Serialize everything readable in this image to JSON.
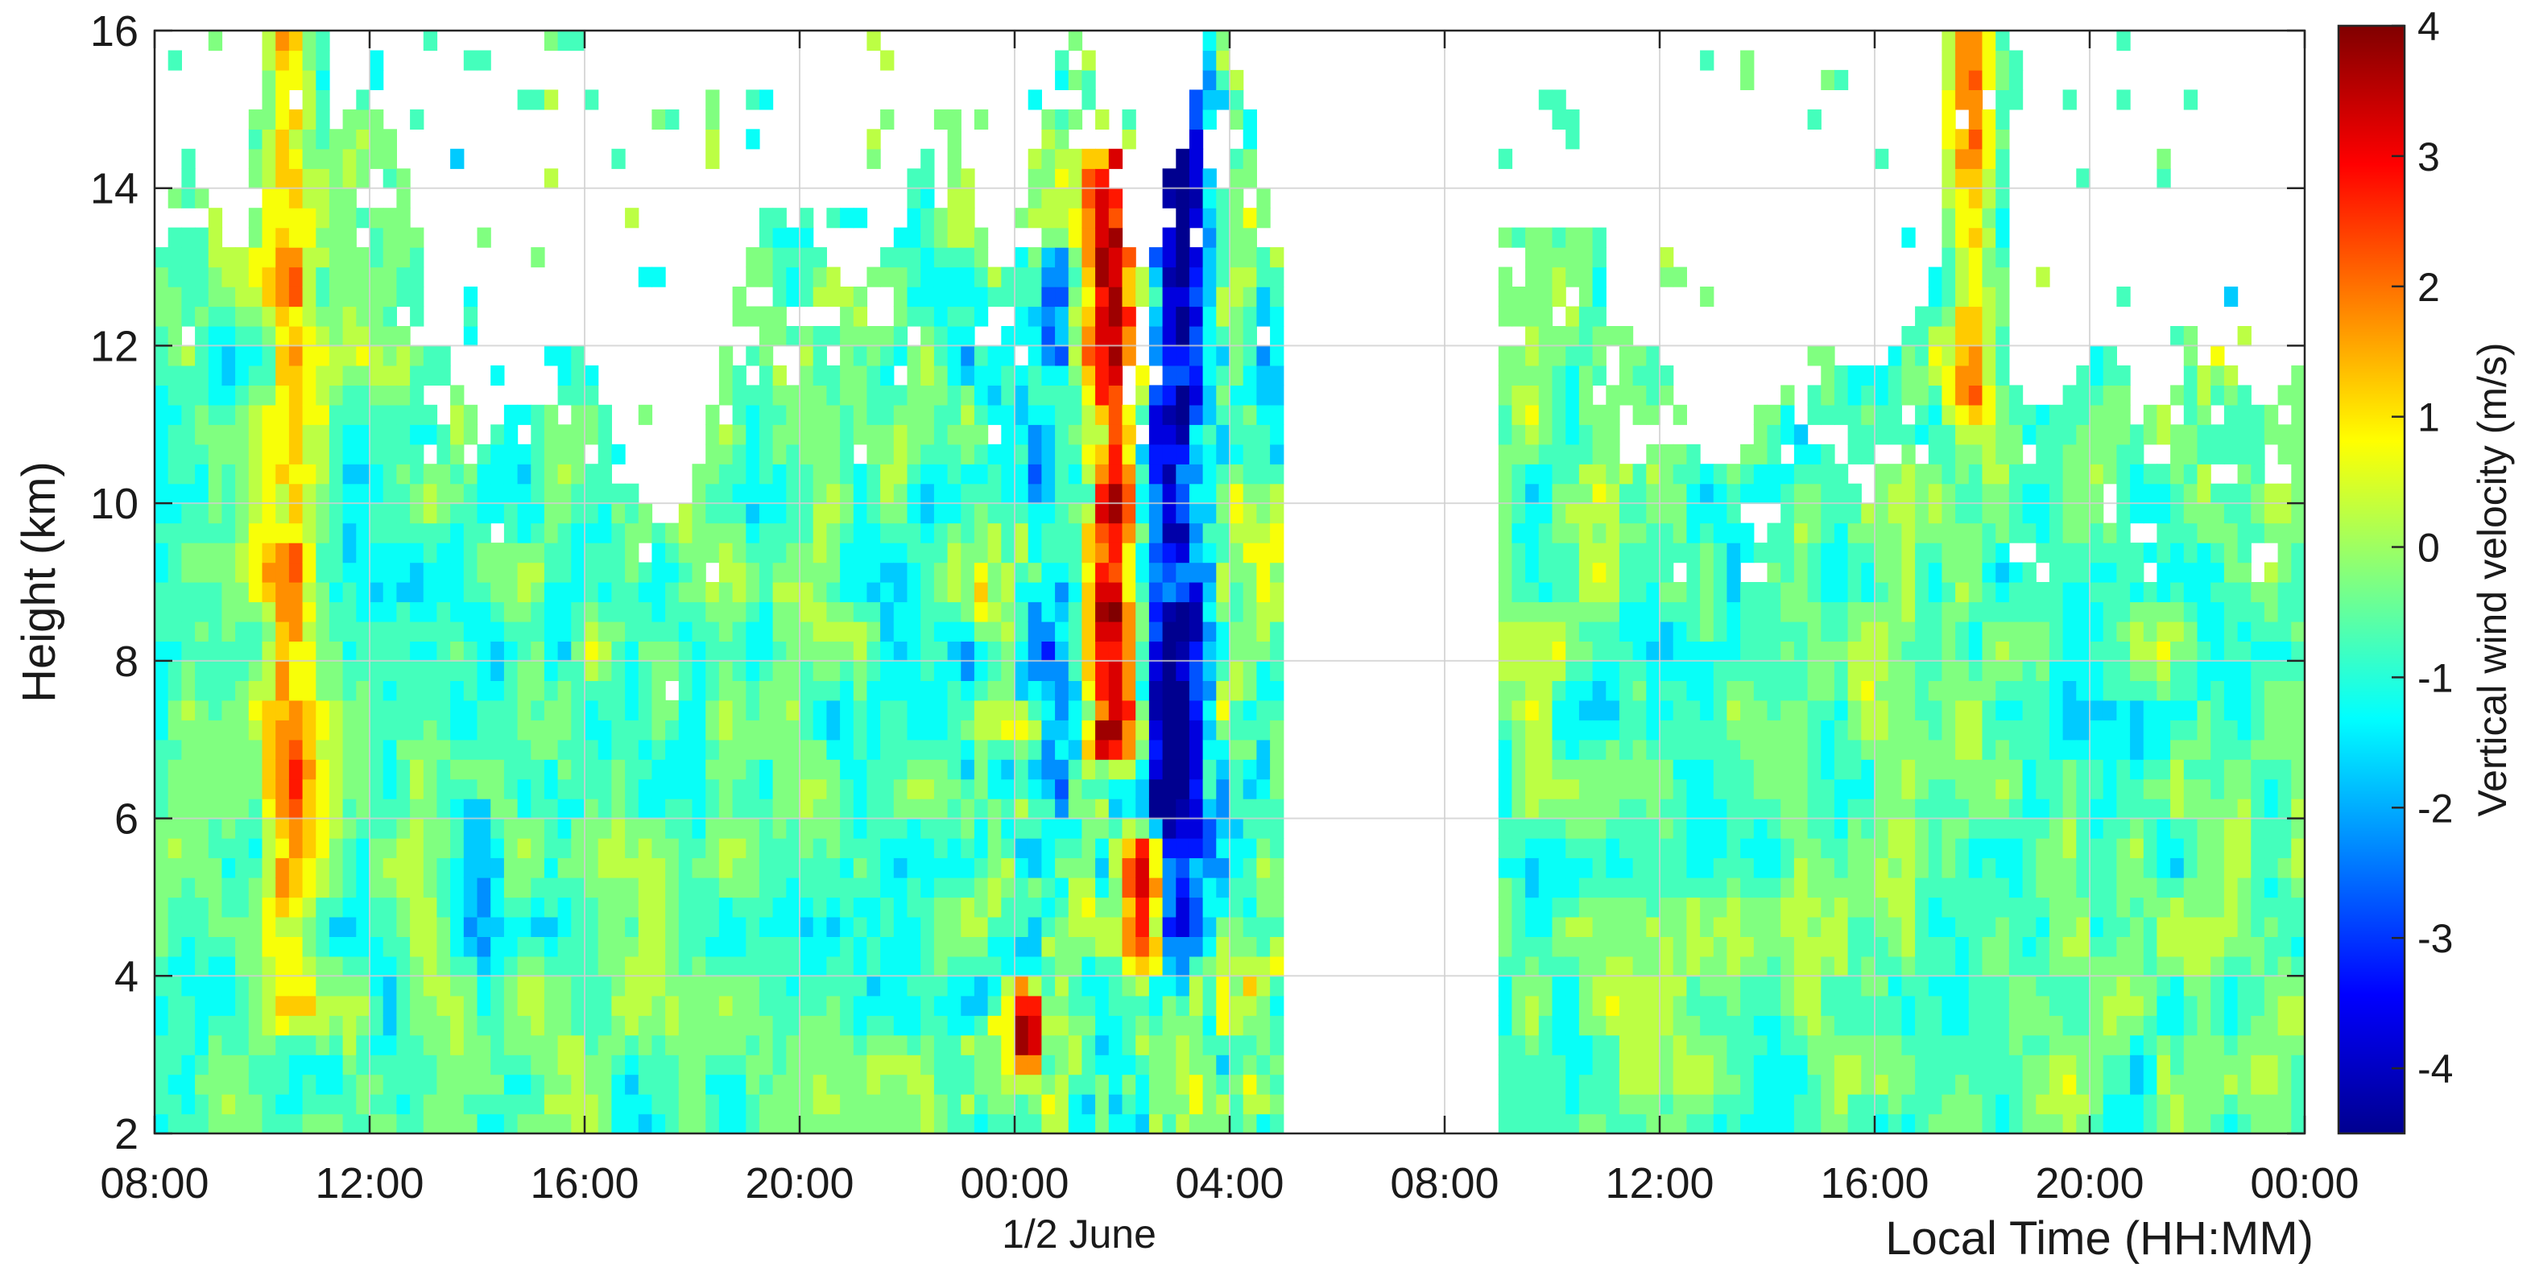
{
  "chart_data": {
    "type": "heatmap",
    "title": "",
    "xlabel": "Local Time (HH:MM)",
    "ylabel": "Height (km)",
    "date_annotation": "1/2 June",
    "x_tick_labels": [
      "08:00",
      "12:00",
      "16:00",
      "20:00",
      "00:00",
      "04:00",
      "08:00",
      "12:00",
      "16:00",
      "20:00",
      "00:00"
    ],
    "x_range_hours": [
      0,
      40
    ],
    "ylim": [
      2,
      16
    ],
    "y_ticks": [
      2,
      4,
      6,
      8,
      10,
      12,
      14,
      16
    ],
    "grid": true,
    "colorbar": {
      "label": "Vertical wind velocity (m/s)",
      "range": [
        -4.5,
        4
      ],
      "ticks": [
        4,
        3,
        2,
        1,
        0,
        -1,
        -2,
        -3,
        -4
      ],
      "colormap": "jet",
      "colors": [
        "#00008f",
        "#0000ff",
        "#0080ff",
        "#00ffff",
        "#80ff80",
        "#ffff00",
        "#ff8000",
        "#ff0000",
        "#800000"
      ]
    },
    "data_gaps": [
      {
        "x_hours": [
          21,
          25
        ],
        "note": "no data"
      }
    ],
    "background_velocity": -0.8,
    "features": [
      {
        "x_hours": 2.5,
        "y_km": [
          3.5,
          16
        ],
        "value": 1.2
      },
      {
        "x_hours": 17.8,
        "y_km": [
          7,
          14.5
        ],
        "value": 2.8
      },
      {
        "x_hours": 18.8,
        "y_km": [
          6,
          15
        ],
        "value": -2.2
      },
      {
        "x_hours": 19.1,
        "y_km": [
          4.5,
          16
        ],
        "value": -3.8
      },
      {
        "x_hours": 18.4,
        "y_km": [
          4.5,
          5.5
        ],
        "value": 3.6
      },
      {
        "x_hours": 16.2,
        "y_km": [
          3.3,
          3.5
        ],
        "value": 3.5
      },
      {
        "x_hours": 33.8,
        "y_km": [
          11.5,
          16
        ],
        "value": 1.3
      },
      {
        "x_hours": 16.6,
        "y_km": [
          6,
          13
        ],
        "value": -2.0
      },
      {
        "x_hours": 6.0,
        "y_km": [
          4.5,
          6
        ],
        "value": -2.0
      }
    ]
  }
}
